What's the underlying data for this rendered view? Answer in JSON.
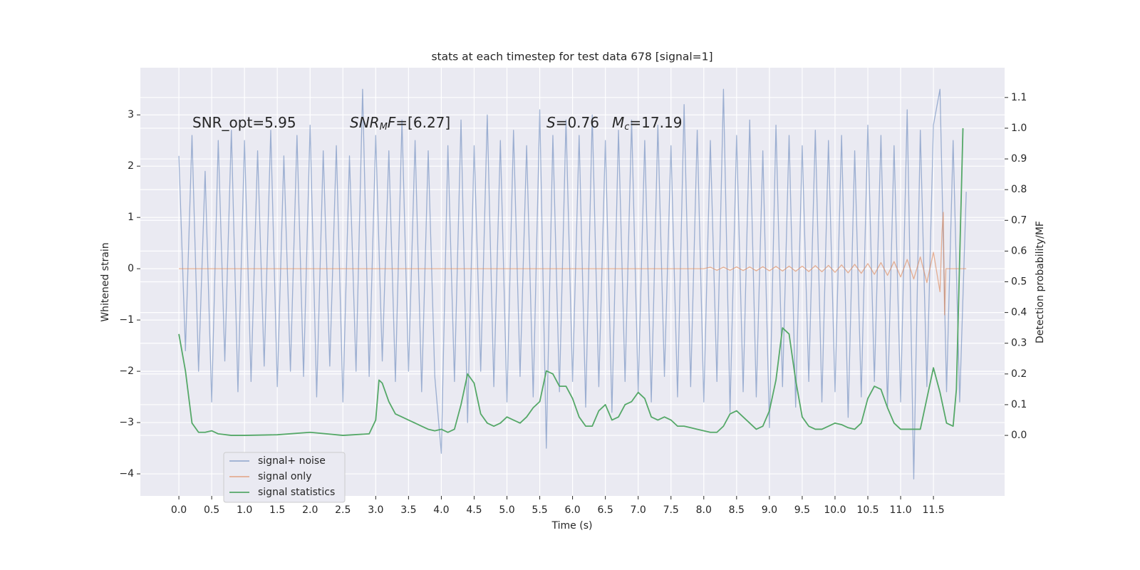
{
  "chart_data": {
    "type": "line",
    "title": "stats at each timestep for test data 678 [signal=1]",
    "x_label": "Time (s)",
    "y_label": "Whitened strain",
    "y2_label": "Detection probability/MF",
    "xlim": [
      -0.587,
      12.585
    ],
    "ylim": [
      -4.43,
      3.92
    ],
    "y2lim": [
      -0.197,
      1.197
    ],
    "xticks": [
      {
        "value": 0,
        "label": "0.0"
      },
      0.5,
      {
        "value": 1,
        "label": "1.0"
      },
      1.5,
      {
        "value": 2,
        "label": "2.0"
      },
      2.5,
      {
        "value": 3,
        "label": "3.0"
      },
      3.5,
      {
        "value": 4,
        "label": "4.0"
      },
      4.5,
      {
        "value": 5,
        "label": "5.0"
      },
      5.5,
      {
        "value": 6,
        "label": "6.0"
      },
      6.5,
      {
        "value": 7,
        "label": "7.0"
      },
      7.5,
      {
        "value": 8,
        "label": "8.0"
      },
      8.5,
      {
        "value": 9,
        "label": "9.0"
      },
      9.5,
      {
        "value": 10,
        "label": "10.0"
      },
      10.5,
      {
        "value": 11,
        "label": "11.0"
      },
      11.5
    ],
    "yticks": [
      {
        "value": -4,
        "label": "−4"
      },
      {
        "value": -3,
        "label": "−3"
      },
      {
        "value": -2,
        "label": "−2"
      },
      {
        "value": -1,
        "label": "−1"
      },
      0,
      1,
      2,
      3
    ],
    "y2ticks": [
      {
        "value": 0,
        "label": "0.0"
      },
      0.1,
      0.2,
      0.3,
      0.4,
      0.5,
      0.6,
      0.7,
      0.8,
      0.9,
      {
        "value": 1,
        "label": "1.0"
      },
      1.1
    ],
    "grid": true,
    "legend_loc": "lower left",
    "annotations": [
      {
        "parts": [
          {
            "text": "SNR_opt=5.95"
          }
        ]
      },
      {
        "parts": [
          {
            "text": "SNR",
            "italic": true
          },
          {
            "text": "M",
            "italic": true,
            "sub": true
          },
          {
            "text": "F",
            "italic": true
          },
          {
            "text": "=[6.27]"
          }
        ]
      },
      {
        "parts": [
          {
            "text": "S",
            "italic": true
          },
          {
            "text": "=0.76"
          }
        ]
      },
      {
        "parts": [
          {
            "text": "M",
            "italic": true
          },
          {
            "text": "c",
            "italic": true,
            "sub": true
          },
          {
            "text": "=17.19"
          }
        ]
      }
    ],
    "series": [
      {
        "name": "signal+ noise",
        "color": "#4c72b0",
        "opacity": 0.5,
        "x": [
          0,
          0.1,
          0.2,
          0.3,
          0.4,
          0.5,
          0.6,
          0.7,
          0.8,
          0.9,
          1,
          1.1,
          1.2,
          1.3,
          1.4,
          1.5,
          1.6,
          1.7,
          1.8,
          1.9,
          2,
          2.1,
          2.2,
          2.3,
          2.4,
          2.5,
          2.6,
          2.7,
          2.8,
          2.9,
          3,
          3.1,
          3.2,
          3.3,
          3.4,
          3.5,
          3.6,
          3.7,
          3.8,
          3.9,
          4,
          4.1,
          4.2,
          4.3,
          4.4,
          4.5,
          4.6,
          4.7,
          4.8,
          4.9,
          5,
          5.1,
          5.2,
          5.3,
          5.4,
          5.5,
          5.6,
          5.7,
          5.8,
          5.9,
          6,
          6.1,
          6.2,
          6.3,
          6.4,
          6.5,
          6.6,
          6.7,
          6.8,
          6.9,
          7,
          7.1,
          7.2,
          7.3,
          7.4,
          7.5,
          7.6,
          7.7,
          7.8,
          7.9,
          8,
          8.1,
          8.2,
          8.3,
          8.4,
          8.5,
          8.6,
          8.7,
          8.8,
          8.9,
          9,
          9.1,
          9.2,
          9.3,
          9.4,
          9.5,
          9.6,
          9.7,
          9.8,
          9.9,
          10,
          10.1,
          10.2,
          10.3,
          10.4,
          10.5,
          10.6,
          10.7,
          10.8,
          10.9,
          11,
          11.1,
          11.2,
          11.3,
          11.4,
          11.5,
          11.6,
          11.7,
          11.8,
          11.9,
          12
        ],
        "values": [
          2.2,
          -1.6,
          2.6,
          -2.0,
          1.9,
          -2.6,
          2.5,
          -1.8,
          2.7,
          -2.4,
          2.5,
          -2.2,
          2.3,
          -1.9,
          2.7,
          -2.3,
          2.2,
          -2.0,
          2.6,
          -2.1,
          2.8,
          -2.5,
          2.3,
          -1.9,
          2.4,
          -2.6,
          2.2,
          -2.0,
          3.5,
          -2.1,
          2.6,
          -1.8,
          2.3,
          -2.2,
          2.9,
          -2.0,
          2.5,
          -2.4,
          2.3,
          -2.1,
          -3.6,
          2.4,
          -2.2,
          2.9,
          -3.0,
          2.4,
          -2.0,
          3.0,
          -2.3,
          2.5,
          -2.6,
          2.7,
          -2.1,
          2.4,
          -2.5,
          3.1,
          -3.5,
          2.6,
          -2.4,
          2.9,
          -2.2,
          2.6,
          -2.7,
          3.0,
          -2.3,
          2.5,
          -2.8,
          2.7,
          -2.2,
          2.9,
          -2.4,
          2.5,
          -2.6,
          2.8,
          -2.1,
          2.4,
          -2.5,
          3.2,
          -2.3,
          2.7,
          -2.6,
          2.5,
          -2.2,
          3.5,
          -2.8,
          2.6,
          -2.4,
          2.9,
          -2.5,
          2.3,
          -3.1,
          2.8,
          -2.3,
          2.6,
          -2.7,
          2.4,
          -2.2,
          2.7,
          -2.6,
          2.5,
          -2.4,
          2.6,
          -2.9,
          2.3,
          -2.5,
          2.8,
          -2.2,
          2.6,
          -2.7,
          2.4,
          -2.6,
          3.1,
          -4.1,
          2.7,
          -2.3,
          2.8,
          3.5,
          -2.4,
          2.5,
          -2.6,
          1.5
        ]
      },
      {
        "name": "signal only",
        "color": "#dd8452",
        "opacity": 0.6,
        "x": [
          0,
          8,
          8.1,
          8.2,
          8.3,
          8.4,
          8.5,
          8.6,
          8.7,
          8.8,
          8.9,
          9,
          9.1,
          9.2,
          9.3,
          9.4,
          9.5,
          9.6,
          9.7,
          9.8,
          9.9,
          10,
          10.1,
          10.2,
          10.3,
          10.4,
          10.5,
          10.6,
          10.7,
          10.8,
          10.9,
          11,
          11.1,
          11.2,
          11.3,
          11.4,
          11.5,
          11.6,
          11.63,
          11.65,
          11.67,
          11.69,
          12
        ],
        "values": [
          0,
          0,
          0.03,
          -0.03,
          0.03,
          -0.03,
          0.035,
          -0.035,
          0.035,
          -0.04,
          0.04,
          -0.04,
          0.045,
          -0.045,
          0.05,
          -0.05,
          0.05,
          -0.055,
          0.06,
          -0.06,
          0.065,
          -0.07,
          0.075,
          -0.08,
          0.085,
          -0.09,
          0.1,
          -0.11,
          0.12,
          -0.13,
          0.14,
          -0.16,
          0.18,
          -0.2,
          0.23,
          -0.27,
          0.32,
          -0.45,
          0.7,
          1.1,
          -0.9,
          0,
          0
        ]
      },
      {
        "name": "signal statistics",
        "color": "#55a868",
        "axis": "y2",
        "x": [
          0,
          0.1,
          0.2,
          0.3,
          0.4,
          0.5,
          0.6,
          0.8,
          1,
          1.5,
          2,
          2.5,
          2.9,
          3,
          3.05,
          3.1,
          3.2,
          3.3,
          3.4,
          3.5,
          3.6,
          3.7,
          3.8,
          3.9,
          4,
          4.1,
          4.2,
          4.3,
          4.4,
          4.5,
          4.6,
          4.7,
          4.8,
          4.9,
          5,
          5.1,
          5.2,
          5.3,
          5.4,
          5.5,
          5.6,
          5.7,
          5.8,
          5.9,
          6,
          6.1,
          6.2,
          6.3,
          6.4,
          6.5,
          6.6,
          6.7,
          6.8,
          6.9,
          7,
          7.1,
          7.2,
          7.3,
          7.4,
          7.5,
          7.6,
          7.7,
          7.8,
          7.9,
          8,
          8.1,
          8.2,
          8.3,
          8.4,
          8.5,
          8.6,
          8.7,
          8.8,
          8.9,
          9,
          9.1,
          9.2,
          9.3,
          9.4,
          9.5,
          9.6,
          9.7,
          9.8,
          9.9,
          10,
          10.1,
          10.2,
          10.3,
          10.4,
          10.5,
          10.6,
          10.7,
          10.8,
          10.9,
          11,
          11.1,
          11.2,
          11.3,
          11.4,
          11.5,
          11.6,
          11.7,
          11.8,
          11.85,
          11.95
        ],
        "values": [
          0.33,
          0.21,
          0.04,
          0.01,
          0.01,
          0.015,
          0.005,
          0.0,
          0.0,
          0.002,
          0.01,
          0.0,
          0.005,
          0.05,
          0.18,
          0.17,
          0.11,
          0.07,
          0.06,
          0.05,
          0.04,
          0.03,
          0.02,
          0.015,
          0.02,
          0.01,
          0.02,
          0.1,
          0.2,
          0.17,
          0.07,
          0.04,
          0.03,
          0.04,
          0.06,
          0.05,
          0.04,
          0.06,
          0.09,
          0.11,
          0.21,
          0.2,
          0.16,
          0.16,
          0.12,
          0.06,
          0.03,
          0.03,
          0.08,
          0.1,
          0.05,
          0.06,
          0.1,
          0.11,
          0.14,
          0.12,
          0.06,
          0.05,
          0.06,
          0.05,
          0.03,
          0.03,
          0.025,
          0.02,
          0.015,
          0.01,
          0.01,
          0.03,
          0.07,
          0.08,
          0.06,
          0.04,
          0.02,
          0.03,
          0.08,
          0.18,
          0.35,
          0.33,
          0.18,
          0.06,
          0.03,
          0.02,
          0.02,
          0.03,
          0.04,
          0.035,
          0.025,
          0.02,
          0.04,
          0.12,
          0.16,
          0.15,
          0.09,
          0.04,
          0.02,
          0.02,
          0.02,
          0.02,
          0.12,
          0.22,
          0.14,
          0.04,
          0.03,
          0.15,
          1.0
        ]
      }
    ]
  }
}
